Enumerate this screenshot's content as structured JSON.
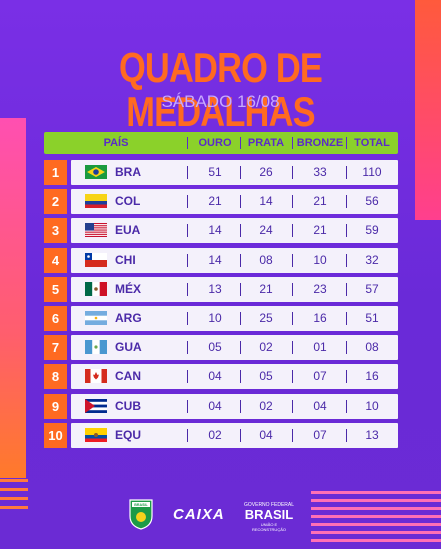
{
  "title": "QUADRO DE MEDALHAS",
  "subtitle": "SÁBADO 16/08",
  "columns": {
    "pais": "PAÍS",
    "ouro": "OURO",
    "prata": "PRATA",
    "bronze": "BRONZE",
    "total": "TOTAL"
  },
  "rows": [
    {
      "rank": "1",
      "code": "BRA",
      "flag": "brazil-flag-icon",
      "ouro": "51",
      "prata": "26",
      "bronze": "33",
      "total": "110"
    },
    {
      "rank": "2",
      "code": "COL",
      "flag": "colombia-flag-icon",
      "ouro": "21",
      "prata": "14",
      "bronze": "21",
      "total": "56"
    },
    {
      "rank": "3",
      "code": "EUA",
      "flag": "usa-flag-icon",
      "ouro": "14",
      "prata": "24",
      "bronze": "21",
      "total": "59"
    },
    {
      "rank": "4",
      "code": "CHI",
      "flag": "chile-flag-icon",
      "ouro": "14",
      "prata": "08",
      "bronze": "10",
      "total": "32"
    },
    {
      "rank": "5",
      "code": "MÉX",
      "flag": "mexico-flag-icon",
      "ouro": "13",
      "prata": "21",
      "bronze": "23",
      "total": "57"
    },
    {
      "rank": "6",
      "code": "ARG",
      "flag": "argentina-flag-icon",
      "ouro": "10",
      "prata": "25",
      "bronze": "16",
      "total": "51"
    },
    {
      "rank": "7",
      "code": "GUA",
      "flag": "guatemala-flag-icon",
      "ouro": "05",
      "prata": "02",
      "bronze": "01",
      "total": "08"
    },
    {
      "rank": "8",
      "code": "CAN",
      "flag": "canada-flag-icon",
      "ouro": "04",
      "prata": "05",
      "bronze": "07",
      "total": "16"
    },
    {
      "rank": "9",
      "code": "CUB",
      "flag": "cuba-flag-icon",
      "ouro": "04",
      "prata": "02",
      "bronze": "04",
      "total": "10"
    },
    {
      "rank": "10",
      "code": "EQU",
      "flag": "ecuador-flag-icon",
      "ouro": "02",
      "prata": "04",
      "bronze": "07",
      "total": "13"
    }
  ],
  "logos": {
    "cbb": "BRASIL",
    "caixa": "CAIXA",
    "gov_top": "GOVERNO FEDERAL",
    "gov_main": "BRASIL",
    "gov_bottom": "UNIÃO E RECONSTRUÇÃO"
  },
  "colors": {
    "accent": "#ff6a21",
    "header": "#8bd12a",
    "background": "#7a2fe6",
    "text": "#4b2aa8"
  }
}
